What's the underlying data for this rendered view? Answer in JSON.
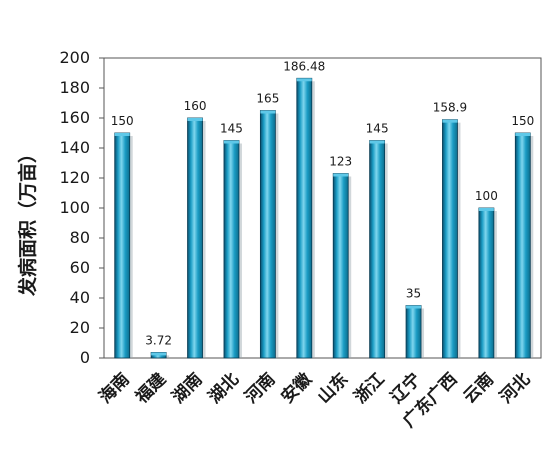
{
  "chart_data": {
    "type": "bar",
    "title": "",
    "xlabel": "",
    "ylabel": "发病面积（万亩）",
    "categories": [
      "海南",
      "福建",
      "湖南",
      "湖北",
      "河南",
      "安徽",
      "山东",
      "浙江",
      "辽宁",
      "广东广西",
      "云南",
      "河北"
    ],
    "values": [
      150,
      3.72,
      160,
      145,
      165,
      186.48,
      123,
      145,
      35,
      158.9,
      100,
      150
    ],
    "value_labels": [
      "150",
      "3.72",
      "160",
      "145",
      "165",
      "186.48",
      "123",
      "145",
      "35",
      "158.9",
      "100",
      "150"
    ],
    "ylim": [
      0,
      200
    ],
    "yticks": [
      0,
      20,
      40,
      60,
      80,
      100,
      120,
      140,
      160,
      180,
      200
    ],
    "grid": false,
    "legend": "none",
    "colors": {
      "bar_left": "#0a4f6e",
      "bar_mid": "#1a9cc4",
      "bar_highlight": "#7fd6ee",
      "bar_right": "#0d6d8c",
      "bar_top": "#5ec8e8",
      "axis": "#555555",
      "plot_border": "#555555"
    }
  }
}
